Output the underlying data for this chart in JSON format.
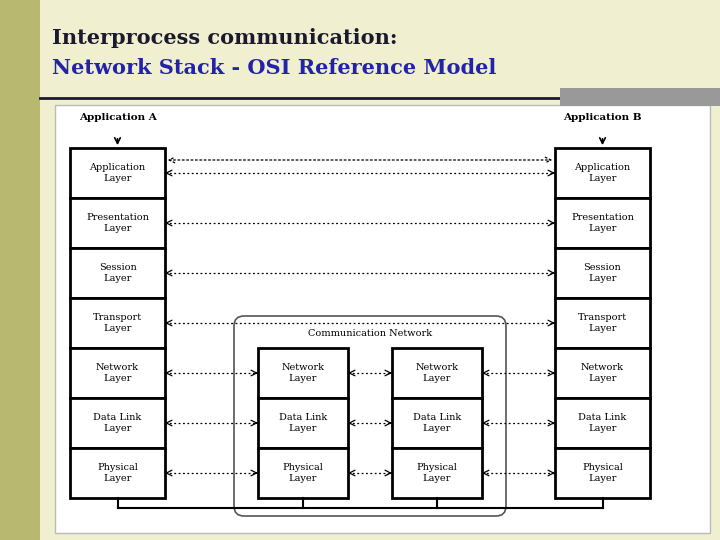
{
  "title_line1": "Interprocess communication:",
  "title_line2": "Network Stack - OSI Reference Model",
  "title_color1": "#1a1a2e",
  "title_color2": "#2222aa",
  "bg_color": "#f0f0d0",
  "left_bar_color": "#b8b870",
  "layers_all": [
    "Application\nLayer",
    "Presentation\nLayer",
    "Session\nLayer",
    "Transport\nLayer",
    "Network\nLayer",
    "Data Link\nLayer",
    "Physical\nLayer"
  ],
  "layers_mid": [
    "Network\nLayer",
    "Data Link\nLayer",
    "Physical\nLayer"
  ]
}
